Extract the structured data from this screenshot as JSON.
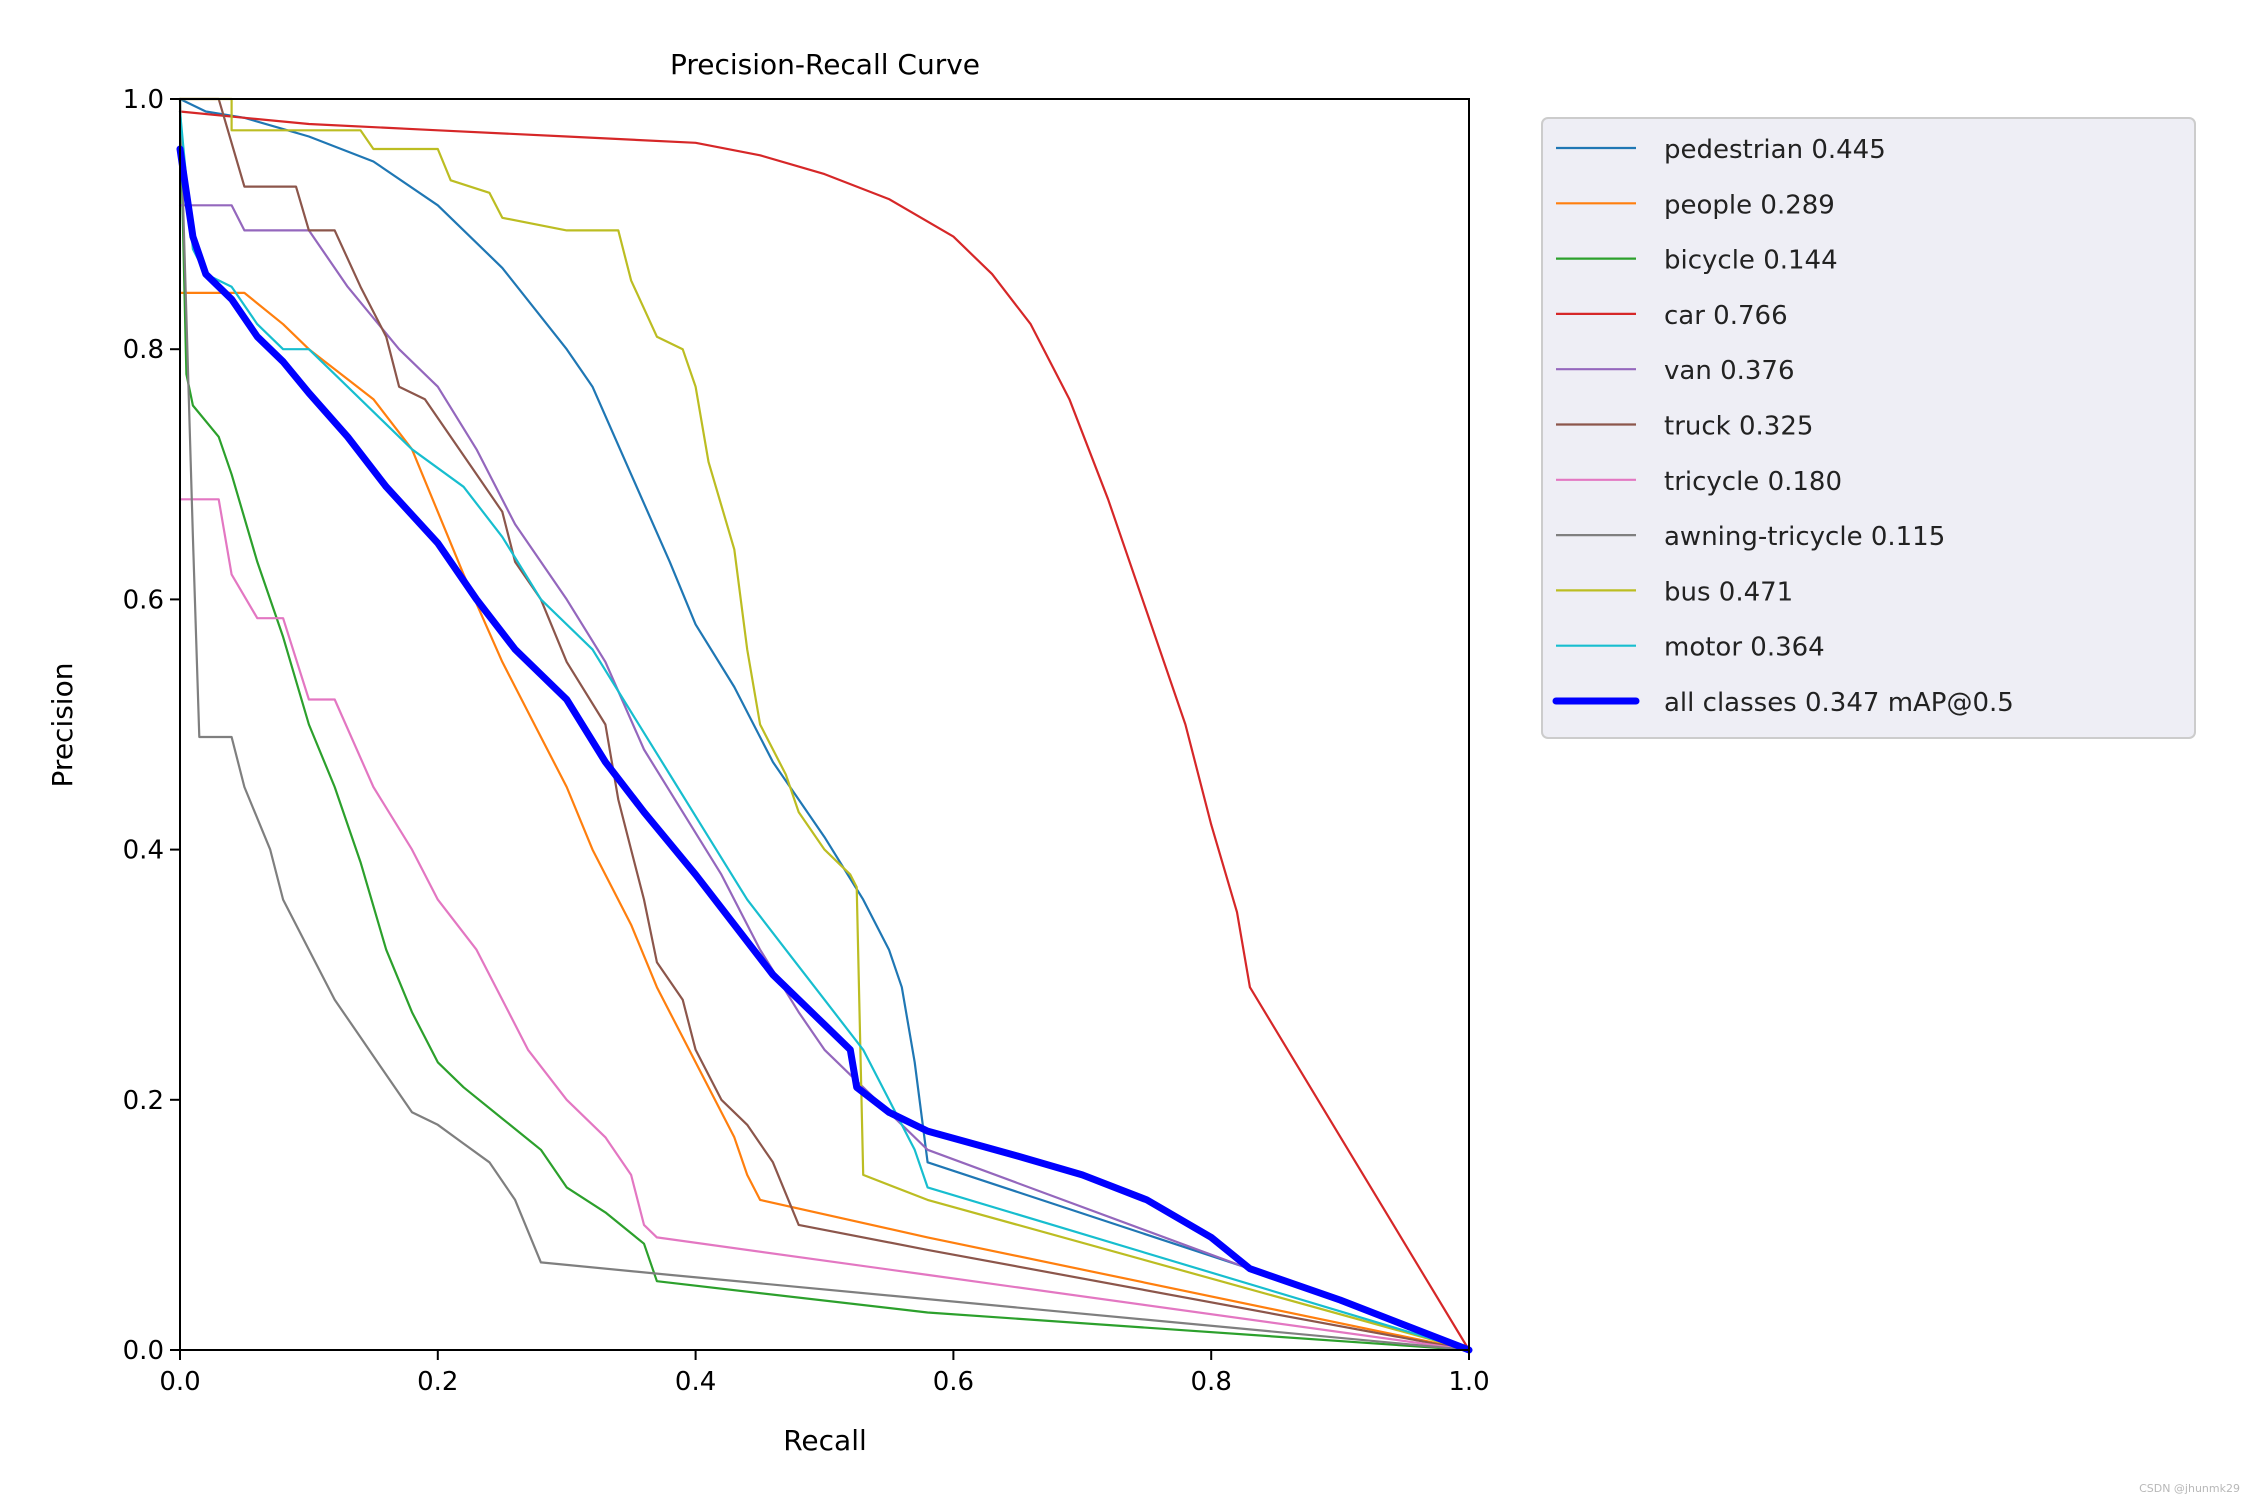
{
  "watermark": "CSDN @jhunmk29",
  "chart_data": {
    "type": "line",
    "title": "Precision-Recall Curve",
    "xlabel": "Recall",
    "ylabel": "Precision",
    "xlim": [
      0,
      1
    ],
    "ylim": [
      0,
      1
    ],
    "xticks": [
      "0.0",
      "0.2",
      "0.4",
      "0.6",
      "0.8",
      "1.0"
    ],
    "yticks": [
      "0.0",
      "0.2",
      "0.4",
      "0.6",
      "0.8",
      "1.0"
    ],
    "grid": false,
    "legend_position": "outside-right-top",
    "series": [
      {
        "name": "pedestrian 0.445",
        "color": "#1f77b4",
        "emphasis": false,
        "points": [
          [
            0,
            1.0
          ],
          [
            0.02,
            0.99
          ],
          [
            0.05,
            0.985
          ],
          [
            0.1,
            0.97
          ],
          [
            0.15,
            0.95
          ],
          [
            0.2,
            0.915
          ],
          [
            0.25,
            0.865
          ],
          [
            0.3,
            0.8
          ],
          [
            0.32,
            0.77
          ],
          [
            0.35,
            0.7
          ],
          [
            0.38,
            0.63
          ],
          [
            0.4,
            0.58
          ],
          [
            0.43,
            0.53
          ],
          [
            0.46,
            0.47
          ],
          [
            0.5,
            0.41
          ],
          [
            0.53,
            0.36
          ],
          [
            0.55,
            0.32
          ],
          [
            0.56,
            0.29
          ],
          [
            0.57,
            0.23
          ],
          [
            0.58,
            0.15
          ],
          [
            0.83,
            0.065
          ],
          [
            1.0,
            0.0
          ]
        ]
      },
      {
        "name": "people 0.289",
        "color": "#ff7f0e",
        "emphasis": false,
        "points": [
          [
            0,
            0.845
          ],
          [
            0.05,
            0.845
          ],
          [
            0.08,
            0.82
          ],
          [
            0.1,
            0.8
          ],
          [
            0.15,
            0.76
          ],
          [
            0.18,
            0.72
          ],
          [
            0.2,
            0.67
          ],
          [
            0.22,
            0.62
          ],
          [
            0.25,
            0.55
          ],
          [
            0.28,
            0.49
          ],
          [
            0.3,
            0.45
          ],
          [
            0.32,
            0.4
          ],
          [
            0.35,
            0.34
          ],
          [
            0.37,
            0.29
          ],
          [
            0.39,
            0.25
          ],
          [
            0.41,
            0.21
          ],
          [
            0.43,
            0.17
          ],
          [
            0.44,
            0.14
          ],
          [
            0.45,
            0.12
          ],
          [
            0.58,
            0.09
          ],
          [
            1.0,
            0.0
          ]
        ]
      },
      {
        "name": "bicycle 0.144",
        "color": "#2ca02c",
        "emphasis": false,
        "points": [
          [
            0,
            1.0
          ],
          [
            0.005,
            0.78
          ],
          [
            0.01,
            0.755
          ],
          [
            0.03,
            0.73
          ],
          [
            0.04,
            0.7
          ],
          [
            0.06,
            0.63
          ],
          [
            0.08,
            0.57
          ],
          [
            0.1,
            0.5
          ],
          [
            0.12,
            0.45
          ],
          [
            0.14,
            0.39
          ],
          [
            0.16,
            0.32
          ],
          [
            0.18,
            0.27
          ],
          [
            0.2,
            0.23
          ],
          [
            0.22,
            0.21
          ],
          [
            0.25,
            0.185
          ],
          [
            0.28,
            0.16
          ],
          [
            0.3,
            0.13
          ],
          [
            0.33,
            0.11
          ],
          [
            0.36,
            0.085
          ],
          [
            0.37,
            0.055
          ],
          [
            0.58,
            0.03
          ],
          [
            1.0,
            0.0
          ]
        ]
      },
      {
        "name": "car 0.766",
        "color": "#d62728",
        "emphasis": false,
        "points": [
          [
            0,
            0.99
          ],
          [
            0.05,
            0.985
          ],
          [
            0.1,
            0.98
          ],
          [
            0.2,
            0.975
          ],
          [
            0.3,
            0.97
          ],
          [
            0.4,
            0.965
          ],
          [
            0.45,
            0.955
          ],
          [
            0.5,
            0.94
          ],
          [
            0.55,
            0.92
          ],
          [
            0.6,
            0.89
          ],
          [
            0.63,
            0.86
          ],
          [
            0.66,
            0.82
          ],
          [
            0.69,
            0.76
          ],
          [
            0.72,
            0.68
          ],
          [
            0.75,
            0.59
          ],
          [
            0.78,
            0.5
          ],
          [
            0.8,
            0.42
          ],
          [
            0.82,
            0.35
          ],
          [
            0.83,
            0.29
          ],
          [
            1.0,
            0.0
          ]
        ]
      },
      {
        "name": "van 0.376",
        "color": "#9467bd",
        "emphasis": false,
        "points": [
          [
            0,
            0.915
          ],
          [
            0.04,
            0.915
          ],
          [
            0.05,
            0.895
          ],
          [
            0.1,
            0.895
          ],
          [
            0.13,
            0.85
          ],
          [
            0.17,
            0.8
          ],
          [
            0.2,
            0.77
          ],
          [
            0.23,
            0.72
          ],
          [
            0.26,
            0.66
          ],
          [
            0.3,
            0.6
          ],
          [
            0.33,
            0.55
          ],
          [
            0.36,
            0.48
          ],
          [
            0.39,
            0.43
          ],
          [
            0.42,
            0.38
          ],
          [
            0.45,
            0.32
          ],
          [
            0.48,
            0.27
          ],
          [
            0.5,
            0.24
          ],
          [
            0.53,
            0.21
          ],
          [
            0.55,
            0.19
          ],
          [
            0.58,
            0.16
          ],
          [
            1.0,
            0.0
          ]
        ]
      },
      {
        "name": "truck 0.325",
        "color": "#8c564b",
        "emphasis": false,
        "points": [
          [
            0,
            1.0
          ],
          [
            0.03,
            1.0
          ],
          [
            0.05,
            0.93
          ],
          [
            0.09,
            0.93
          ],
          [
            0.1,
            0.895
          ],
          [
            0.12,
            0.895
          ],
          [
            0.14,
            0.85
          ],
          [
            0.16,
            0.81
          ],
          [
            0.17,
            0.77
          ],
          [
            0.19,
            0.76
          ],
          [
            0.21,
            0.73
          ],
          [
            0.23,
            0.7
          ],
          [
            0.25,
            0.67
          ],
          [
            0.26,
            0.63
          ],
          [
            0.28,
            0.6
          ],
          [
            0.3,
            0.55
          ],
          [
            0.33,
            0.5
          ],
          [
            0.34,
            0.44
          ],
          [
            0.35,
            0.4
          ],
          [
            0.36,
            0.36
          ],
          [
            0.37,
            0.31
          ],
          [
            0.39,
            0.28
          ],
          [
            0.4,
            0.24
          ],
          [
            0.42,
            0.2
          ],
          [
            0.44,
            0.18
          ],
          [
            0.46,
            0.15
          ],
          [
            0.48,
            0.1
          ],
          [
            0.58,
            0.08
          ],
          [
            1.0,
            0.0
          ]
        ]
      },
      {
        "name": "tricycle 0.180",
        "color": "#e377c2",
        "emphasis": false,
        "points": [
          [
            0,
            0.68
          ],
          [
            0.03,
            0.68
          ],
          [
            0.04,
            0.62
          ],
          [
            0.06,
            0.585
          ],
          [
            0.08,
            0.585
          ],
          [
            0.1,
            0.52
          ],
          [
            0.12,
            0.52
          ],
          [
            0.15,
            0.45
          ],
          [
            0.18,
            0.4
          ],
          [
            0.2,
            0.36
          ],
          [
            0.23,
            0.32
          ],
          [
            0.25,
            0.28
          ],
          [
            0.27,
            0.24
          ],
          [
            0.3,
            0.2
          ],
          [
            0.33,
            0.17
          ],
          [
            0.35,
            0.14
          ],
          [
            0.36,
            0.1
          ],
          [
            0.37,
            0.09
          ],
          [
            0.58,
            0.06
          ],
          [
            1.0,
            0.0
          ]
        ]
      },
      {
        "name": "awning-tricycle 0.115",
        "color": "#7f7f7f",
        "emphasis": false,
        "points": [
          [
            0,
            1.0
          ],
          [
            0.01,
            0.65
          ],
          [
            0.015,
            0.49
          ],
          [
            0.04,
            0.49
          ],
          [
            0.05,
            0.45
          ],
          [
            0.07,
            0.4
          ],
          [
            0.08,
            0.36
          ],
          [
            0.1,
            0.32
          ],
          [
            0.12,
            0.28
          ],
          [
            0.14,
            0.25
          ],
          [
            0.16,
            0.22
          ],
          [
            0.18,
            0.19
          ],
          [
            0.2,
            0.18
          ],
          [
            0.22,
            0.165
          ],
          [
            0.24,
            0.15
          ],
          [
            0.26,
            0.12
          ],
          [
            0.28,
            0.07
          ],
          [
            0.38,
            0.06
          ],
          [
            1.0,
            0.0
          ]
        ]
      },
      {
        "name": "bus 0.471",
        "color": "#bcbd22",
        "emphasis": false,
        "points": [
          [
            0,
            1.0
          ],
          [
            0.04,
            1.0
          ],
          [
            0.04,
            0.975
          ],
          [
            0.14,
            0.975
          ],
          [
            0.15,
            0.96
          ],
          [
            0.2,
            0.96
          ],
          [
            0.21,
            0.935
          ],
          [
            0.24,
            0.925
          ],
          [
            0.25,
            0.905
          ],
          [
            0.3,
            0.895
          ],
          [
            0.34,
            0.895
          ],
          [
            0.35,
            0.855
          ],
          [
            0.37,
            0.81
          ],
          [
            0.39,
            0.8
          ],
          [
            0.4,
            0.77
          ],
          [
            0.41,
            0.71
          ],
          [
            0.43,
            0.64
          ],
          [
            0.44,
            0.56
          ],
          [
            0.45,
            0.5
          ],
          [
            0.47,
            0.46
          ],
          [
            0.48,
            0.43
          ],
          [
            0.5,
            0.4
          ],
          [
            0.52,
            0.38
          ],
          [
            0.525,
            0.37
          ],
          [
            0.53,
            0.14
          ],
          [
            0.58,
            0.12
          ],
          [
            1.0,
            0.0
          ]
        ]
      },
      {
        "name": "motor 0.364",
        "color": "#17becf",
        "emphasis": false,
        "points": [
          [
            0,
            0.99
          ],
          [
            0.01,
            0.88
          ],
          [
            0.02,
            0.86
          ],
          [
            0.04,
            0.85
          ],
          [
            0.06,
            0.82
          ],
          [
            0.08,
            0.8
          ],
          [
            0.1,
            0.8
          ],
          [
            0.12,
            0.78
          ],
          [
            0.15,
            0.75
          ],
          [
            0.18,
            0.72
          ],
          [
            0.22,
            0.69
          ],
          [
            0.25,
            0.65
          ],
          [
            0.28,
            0.6
          ],
          [
            0.32,
            0.56
          ],
          [
            0.35,
            0.51
          ],
          [
            0.38,
            0.46
          ],
          [
            0.41,
            0.41
          ],
          [
            0.44,
            0.36
          ],
          [
            0.47,
            0.32
          ],
          [
            0.5,
            0.28
          ],
          [
            0.53,
            0.24
          ],
          [
            0.55,
            0.2
          ],
          [
            0.57,
            0.16
          ],
          [
            0.58,
            0.13
          ],
          [
            1.0,
            0.0
          ]
        ]
      },
      {
        "name": "all classes 0.347 mAP@0.5",
        "color": "#0000ff",
        "emphasis": true,
        "points": [
          [
            0,
            0.96
          ],
          [
            0.01,
            0.89
          ],
          [
            0.02,
            0.86
          ],
          [
            0.04,
            0.84
          ],
          [
            0.06,
            0.81
          ],
          [
            0.08,
            0.79
          ],
          [
            0.1,
            0.765
          ],
          [
            0.13,
            0.73
          ],
          [
            0.16,
            0.69
          ],
          [
            0.2,
            0.645
          ],
          [
            0.23,
            0.6
          ],
          [
            0.26,
            0.56
          ],
          [
            0.3,
            0.52
          ],
          [
            0.33,
            0.47
          ],
          [
            0.36,
            0.43
          ],
          [
            0.4,
            0.38
          ],
          [
            0.43,
            0.34
          ],
          [
            0.46,
            0.3
          ],
          [
            0.5,
            0.26
          ],
          [
            0.52,
            0.24
          ],
          [
            0.525,
            0.21
          ],
          [
            0.55,
            0.19
          ],
          [
            0.58,
            0.175
          ],
          [
            0.65,
            0.155
          ],
          [
            0.7,
            0.14
          ],
          [
            0.75,
            0.12
          ],
          [
            0.8,
            0.09
          ],
          [
            0.83,
            0.065
          ],
          [
            0.9,
            0.04
          ],
          [
            1.0,
            0.0
          ]
        ]
      }
    ]
  }
}
